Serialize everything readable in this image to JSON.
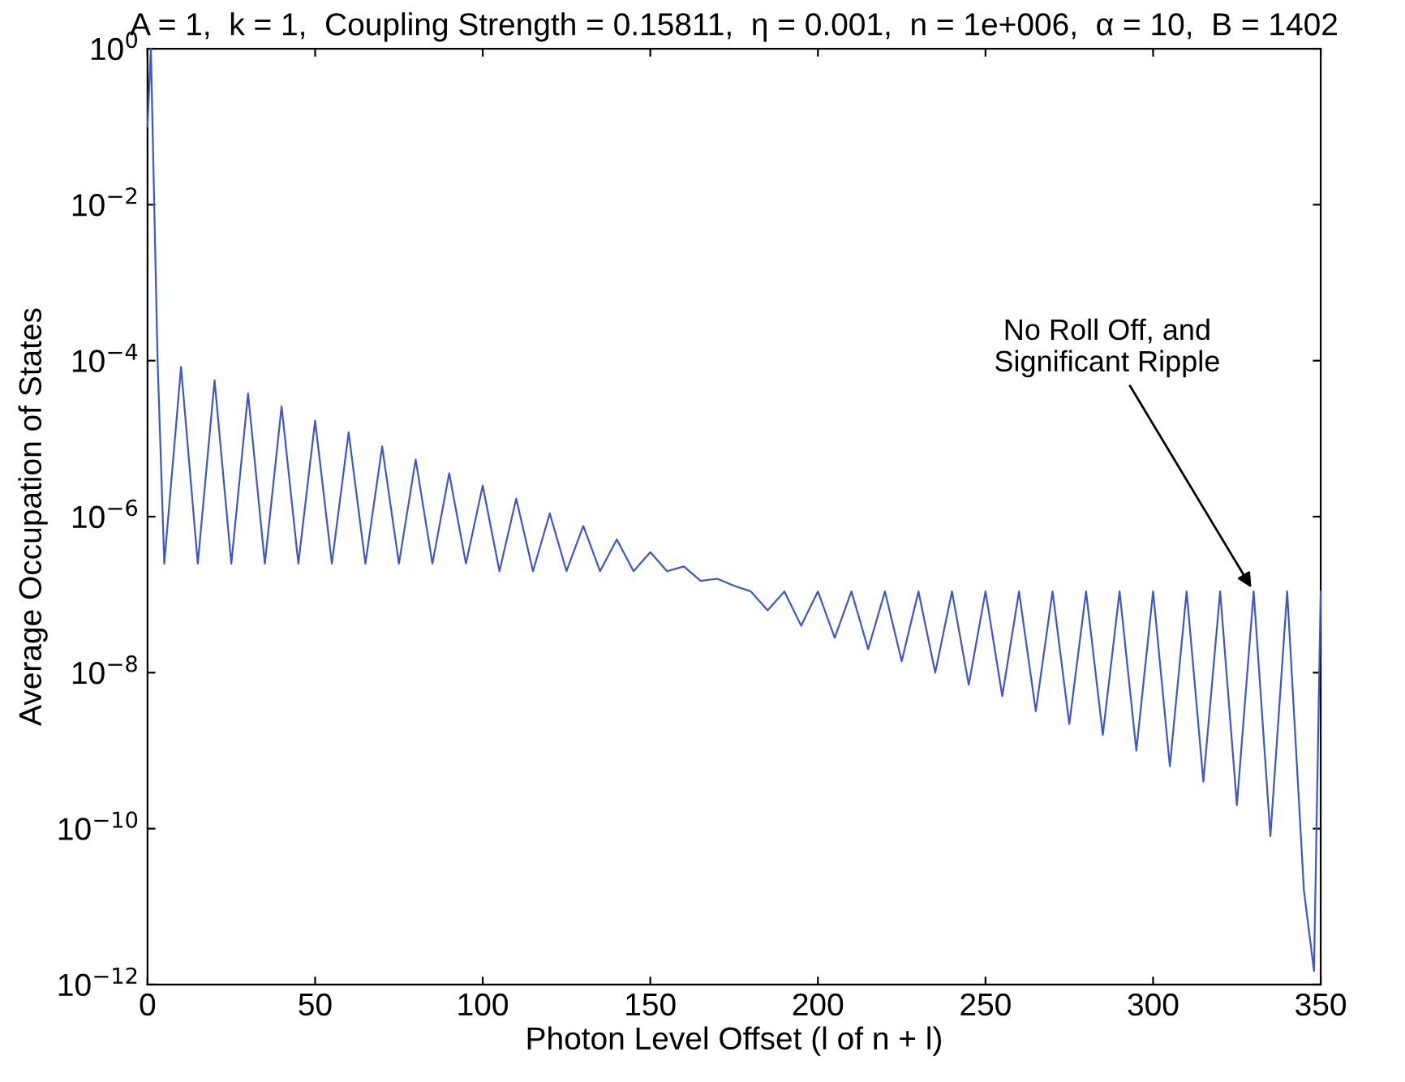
{
  "chart_data": {
    "type": "line",
    "title": "A = 1,  k = 1,  Coupling Strength = 0.15811,  η = 0.001,  n = 1e+006,  α = 10,  B = 1402",
    "xlabel": "Photon Level Offset (l of n + l)",
    "ylabel": "Average Occupation of States",
    "log": "y",
    "grid": false,
    "legend": false,
    "marker": "none",
    "line_style": "solid",
    "xlim": [
      0,
      350
    ],
    "xticks": [
      0,
      50,
      100,
      150,
      200,
      250,
      300,
      350
    ],
    "ylim": [
      1e-12,
      1
    ],
    "yticks": [
      {
        "value": 1e-12,
        "label": "10$^{−12}$"
      },
      {
        "value": 1e-10,
        "label": "10$^{−10}$"
      },
      {
        "value": 1e-08,
        "label": "10$^{−8}$"
      },
      {
        "value": 1e-06,
        "label": "10$^{−6}$"
      },
      {
        "value": 0.0001,
        "label": "10$^{−4}$"
      },
      {
        "value": 0.01,
        "label": "10$^{−2}$"
      },
      {
        "value": 1,
        "label": "10$^{0}$"
      }
    ],
    "annotations": [
      {
        "text": "No Roll Off, and\nSignificant Ripple",
        "x": 330,
        "y": 1.1e-07
      }
    ],
    "series": [
      {
        "color": "#3f56c8",
        "x": [
          0,
          1,
          2,
          3,
          5,
          10,
          15,
          20,
          25,
          30,
          35,
          40,
          45,
          50,
          55,
          60,
          65,
          70,
          75,
          80,
          85,
          90,
          95,
          100,
          105,
          110,
          115,
          120,
          125,
          130,
          135,
          140,
          145,
          150,
          155,
          160,
          165,
          170,
          175,
          180,
          185,
          190,
          195,
          200,
          205,
          210,
          215,
          220,
          225,
          230,
          235,
          240,
          245,
          250,
          255,
          260,
          265,
          270,
          275,
          280,
          285,
          290,
          295,
          300,
          305,
          310,
          315,
          320,
          325,
          330,
          335,
          340,
          345,
          348,
          350
        ],
        "values": [
          0.1,
          1,
          0.01,
          0.0001,
          2.5e-07,
          8.3e-05,
          2.5e-07,
          5.6e-05,
          2.5e-07,
          3.8e-05,
          2.5e-07,
          2.6e-05,
          2.5e-07,
          1.7e-05,
          2.5e-07,
          1.2e-05,
          2.5e-07,
          7.9e-06,
          2.5e-07,
          5.4e-06,
          2.5e-07,
          3.6e-06,
          2.5e-07,
          2.5e-06,
          2e-07,
          1.7e-06,
          2e-07,
          1.1e-06,
          2e-07,
          7.6e-07,
          2e-07,
          5.1e-07,
          2e-07,
          3.5e-07,
          2e-07,
          2.3e-07,
          1.5e-07,
          1.6e-07,
          1.3e-07,
          1.1e-07,
          6.3e-08,
          1.1e-07,
          4e-08,
          1.1e-07,
          2.8e-08,
          1.1e-07,
          2e-08,
          1.1e-07,
          1.4e-08,
          1.1e-07,
          1e-08,
          1.1e-07,
          7e-09,
          1.1e-07,
          5e-09,
          1.1e-07,
          3.2e-09,
          1.1e-07,
          2.2e-09,
          1.1e-07,
          1.6e-09,
          1.1e-07,
          1e-09,
          1.1e-07,
          6.3e-10,
          1.1e-07,
          4e-10,
          1.1e-07,
          2e-10,
          1.1e-07,
          8e-11,
          1.1e-07,
          1.6e-11,
          1.5e-12,
          1.1e-07
        ]
      }
    ]
  }
}
